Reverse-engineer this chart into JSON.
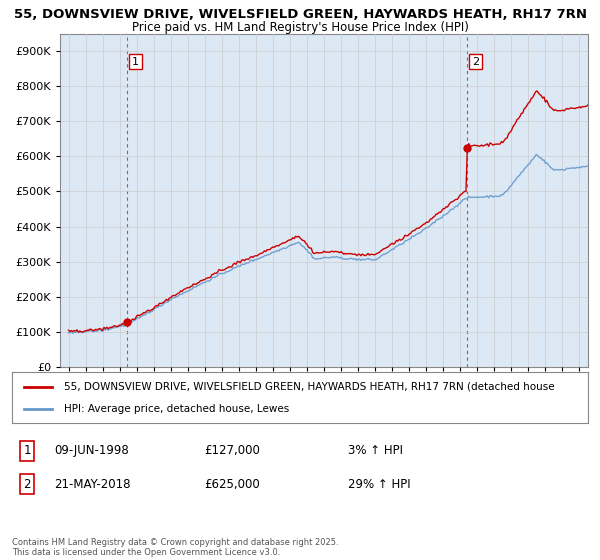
{
  "title1": "55, DOWNSVIEW DRIVE, WIVELSFIELD GREEN, HAYWARDS HEATH, RH17 7RN",
  "title2": "Price paid vs. HM Land Registry's House Price Index (HPI)",
  "yticks": [
    0,
    100000,
    200000,
    300000,
    400000,
    500000,
    600000,
    700000,
    800000,
    900000
  ],
  "purchase1": {
    "date": 1998.44,
    "price": 127000
  },
  "purchase2": {
    "date": 2018.38,
    "price": 625000
  },
  "legend_line1": "55, DOWNSVIEW DRIVE, WIVELSFIELD GREEN, HAYWARDS HEATH, RH17 7RN (detached house",
  "legend_line2": "HPI: Average price, detached house, Lewes",
  "footnote": "Contains HM Land Registry data © Crown copyright and database right 2025.\nThis data is licensed under the Open Government Licence v3.0.",
  "line_color_red": "#cc0000",
  "line_color_blue": "#6699cc",
  "fill_color_blue": "#dce9f5",
  "bg_color": "#ffffff",
  "grid_color": "#cccccc",
  "xmin": 1994.5,
  "xmax": 2025.5,
  "ymin": 0,
  "ymax": 950000
}
